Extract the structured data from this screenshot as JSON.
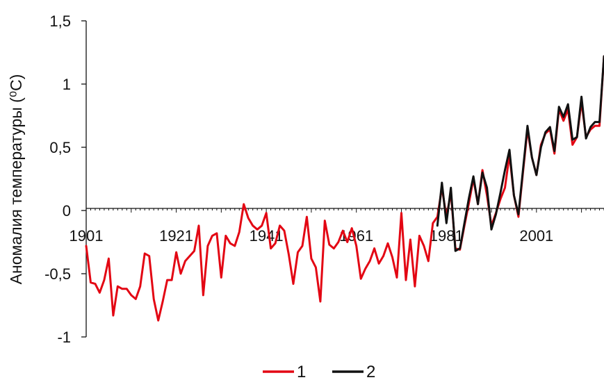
{
  "chart_data": {
    "type": "line",
    "title": "",
    "xlabel": "",
    "ylabel": "Аномалия температуры (⁰C)",
    "xlim": [
      1901,
      2016
    ],
    "ylim": [
      -1,
      1.5
    ],
    "grid": false,
    "x_ticks": [
      {
        "value": 1901,
        "label": "1901"
      },
      {
        "value": 1921,
        "label": "1921"
      },
      {
        "value": 1941,
        "label": "1941"
      },
      {
        "value": 1961,
        "label": "1961"
      },
      {
        "value": 1981,
        "label": "1981"
      },
      {
        "value": 2001,
        "label": "2001"
      }
    ],
    "y_ticks": [
      {
        "value": 1.5,
        "label": "1,5"
      },
      {
        "value": 1,
        "label": "1"
      },
      {
        "value": 0.5,
        "label": "0,5"
      },
      {
        "value": 0,
        "label": "0"
      },
      {
        "value": -0.5,
        "label": "-0,5"
      },
      {
        "value": -1,
        "label": "-1"
      }
    ],
    "legend_position": "bottom-center",
    "series": [
      {
        "name": "1",
        "color": "#e30613",
        "x_start": 1901,
        "values": [
          -0.28,
          -0.57,
          -0.58,
          -0.65,
          -0.55,
          -0.38,
          -0.83,
          -0.6,
          -0.62,
          -0.62,
          -0.67,
          -0.7,
          -0.6,
          -0.34,
          -0.36,
          -0.7,
          -0.87,
          -0.72,
          -0.55,
          -0.55,
          -0.33,
          -0.5,
          -0.4,
          -0.36,
          -0.32,
          -0.12,
          -0.67,
          -0.28,
          -0.2,
          -0.18,
          -0.53,
          -0.2,
          -0.26,
          -0.28,
          -0.17,
          0.05,
          -0.06,
          -0.12,
          -0.15,
          -0.12,
          -0.02,
          -0.3,
          -0.26,
          -0.12,
          -0.16,
          -0.35,
          -0.58,
          -0.33,
          -0.28,
          -0.05,
          -0.38,
          -0.45,
          -0.72,
          -0.08,
          -0.27,
          -0.3,
          -0.25,
          -0.16,
          -0.25,
          -0.14,
          -0.28,
          -0.54,
          -0.46,
          -0.4,
          -0.3,
          -0.42,
          -0.36,
          -0.26,
          -0.37,
          -0.53,
          -0.02,
          -0.55,
          -0.23,
          -0.6,
          -0.2,
          -0.28,
          -0.4,
          -0.1,
          -0.05,
          0.18,
          -0.05,
          0.14,
          -0.3,
          -0.31,
          -0.12,
          0.06,
          0.25,
          0.05,
          0.32,
          0.12,
          -0.12,
          -0.02,
          0.09,
          0.18,
          0.44,
          0.12,
          -0.05,
          0.3,
          0.64,
          0.42,
          0.28,
          0.52,
          0.61,
          0.64,
          0.45,
          0.8,
          0.71,
          0.8,
          0.52,
          0.58,
          0.86,
          0.58,
          0.64,
          0.67,
          0.67,
          1.22
        ]
      },
      {
        "name": "2",
        "color": "#111111",
        "x_start": 1979,
        "values": [
          -0.12,
          0.22,
          -0.1,
          0.18,
          -0.32,
          -0.3,
          -0.1,
          0.1,
          0.27,
          0.05,
          0.3,
          0.18,
          -0.15,
          -0.03,
          0.14,
          0.32,
          0.48,
          0.12,
          -0.03,
          0.32,
          0.67,
          0.42,
          0.28,
          0.5,
          0.62,
          0.66,
          0.47,
          0.82,
          0.74,
          0.84,
          0.56,
          0.58,
          0.9,
          0.57,
          0.66,
          0.7,
          0.7,
          1.22
        ]
      }
    ]
  }
}
